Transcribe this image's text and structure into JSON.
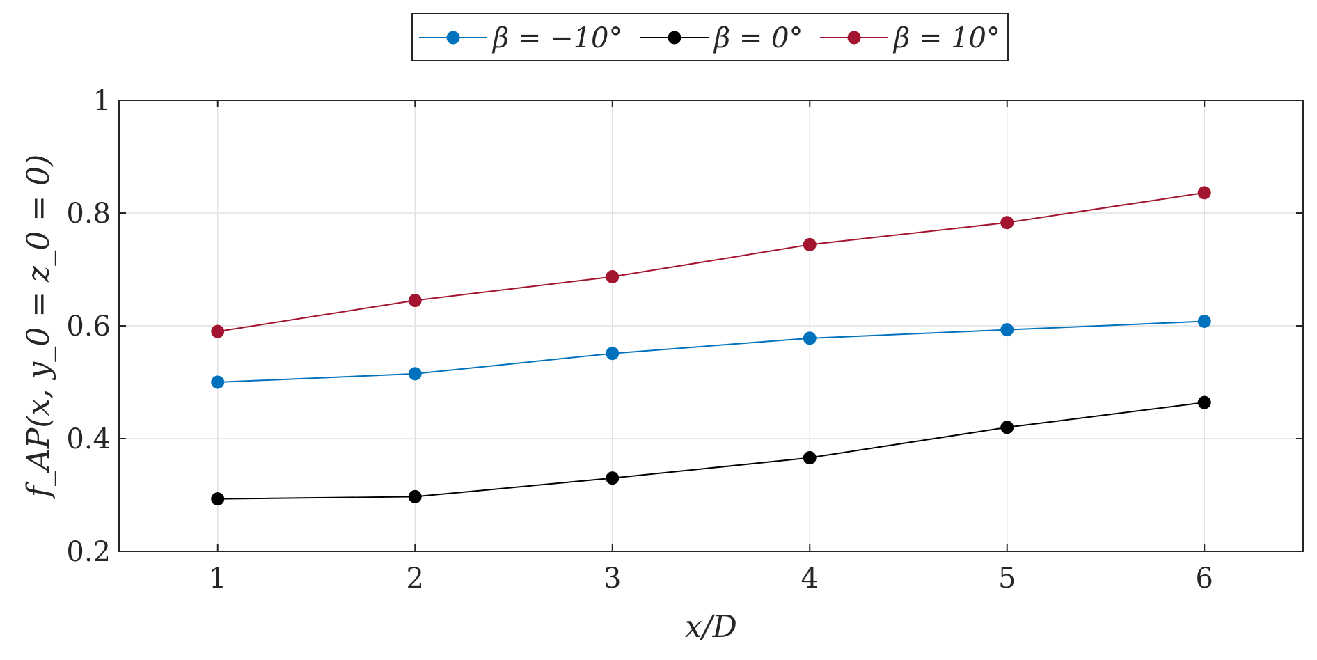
{
  "chart_data": {
    "type": "line",
    "xlabel": "x/D",
    "ylabel": "f_AP(x, y_0 = z_0 = 0)",
    "xlim": [
      0.5,
      6.5
    ],
    "ylim": [
      0.2,
      1.0
    ],
    "xticks": [
      1,
      2,
      3,
      4,
      5,
      6
    ],
    "yticks": [
      0.2,
      0.4,
      0.6,
      0.8,
      1.0
    ],
    "xtick_labels": [
      "1",
      "2",
      "3",
      "4",
      "5",
      "6"
    ],
    "ytick_labels": [
      "0.2",
      "0.4",
      "0.6",
      "0.8",
      "1"
    ],
    "grid": true,
    "legend_position": "top-center",
    "x": [
      1,
      2,
      3,
      4,
      5,
      6
    ],
    "series": [
      {
        "name": "β = −10°",
        "color": "#0072BD",
        "values": [
          0.5,
          0.515,
          0.551,
          0.578,
          0.593,
          0.608
        ]
      },
      {
        "name": "β = 0°",
        "color": "#000000",
        "values": [
          0.293,
          0.297,
          0.33,
          0.366,
          0.42,
          0.464
        ]
      },
      {
        "name": "β = 10°",
        "color": "#A2142F",
        "values": [
          0.59,
          0.645,
          0.687,
          0.744,
          0.783,
          0.836
        ]
      }
    ]
  }
}
